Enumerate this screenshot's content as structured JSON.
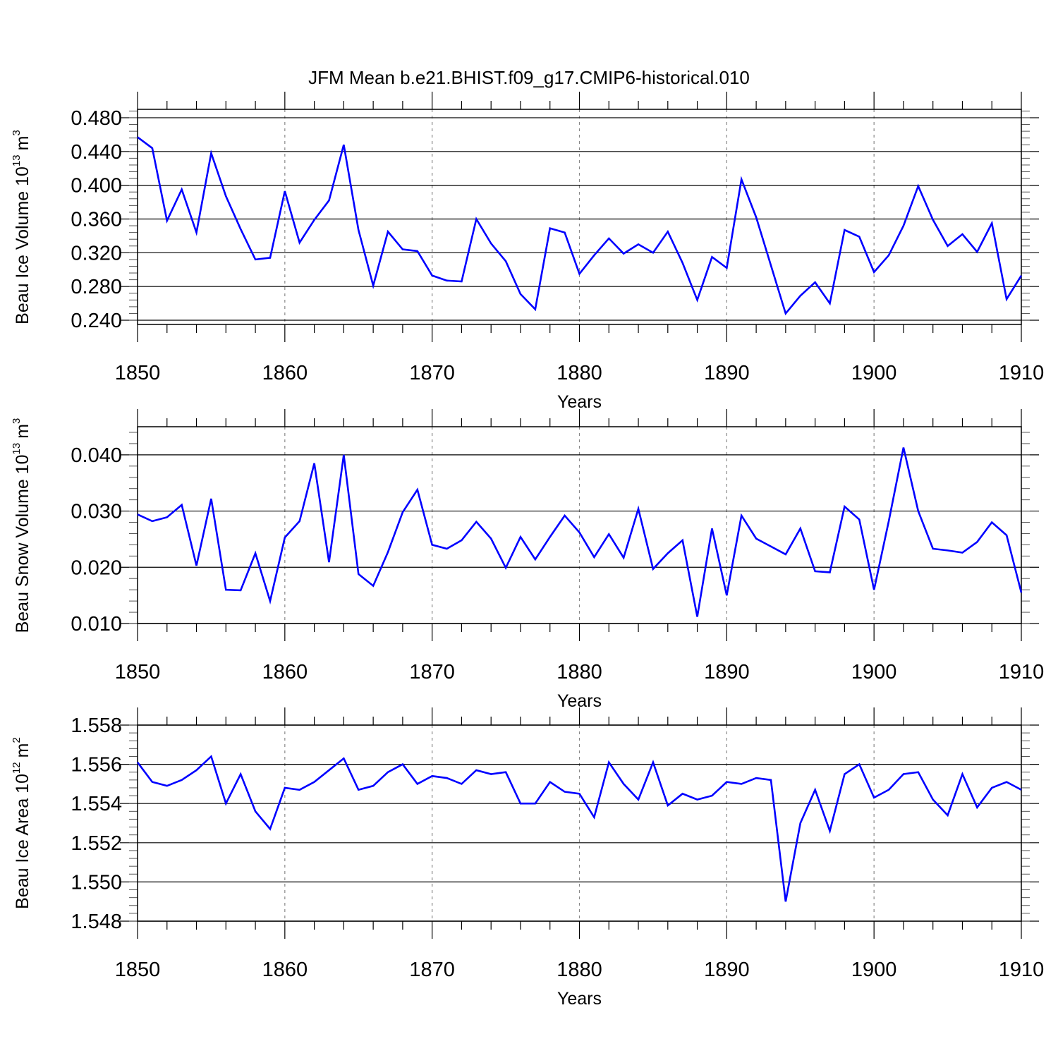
{
  "title": "JFM Mean b.e21.BHIST.f09_g17.CMIP6-historical.010",
  "chart_data": [
    {
      "type": "line",
      "title": "JFM Mean b.e21.BHIST.f09_g17.CMIP6-historical.010",
      "xlabel": "Years",
      "ylabel": "Beau Ice Volume 10",
      "ylabel_exponent": "13",
      "ylabel_unit": "m",
      "ylabel_unit_exponent": "3",
      "xlim": [
        1850,
        1910
      ],
      "ylim": [
        0.235,
        0.49
      ],
      "xticks": [
        1850,
        1860,
        1870,
        1880,
        1890,
        1900,
        1910
      ],
      "yticks": [
        "0.240",
        "0.280",
        "0.320",
        "0.360",
        "0.400",
        "0.440",
        "0.480"
      ],
      "color": "#0000ff",
      "x": [
        1850,
        1851,
        1852,
        1853,
        1854,
        1855,
        1856,
        1857,
        1858,
        1859,
        1860,
        1861,
        1862,
        1863,
        1864,
        1865,
        1866,
        1867,
        1868,
        1869,
        1870,
        1871,
        1872,
        1873,
        1874,
        1875,
        1876,
        1877,
        1878,
        1879,
        1880,
        1881,
        1882,
        1883,
        1884,
        1885,
        1886,
        1887,
        1888,
        1889,
        1890,
        1891,
        1892,
        1893,
        1894,
        1895,
        1896,
        1897,
        1898,
        1899,
        1900,
        1901,
        1902,
        1903,
        1904,
        1905,
        1906,
        1907,
        1908,
        1909,
        1910
      ],
      "values": [
        0.457,
        0.444,
        0.358,
        0.395,
        0.344,
        0.438,
        0.387,
        0.348,
        0.312,
        0.314,
        0.393,
        0.332,
        0.359,
        0.382,
        0.448,
        0.347,
        0.281,
        0.345,
        0.324,
        0.322,
        0.293,
        0.287,
        0.286,
        0.36,
        0.331,
        0.31,
        0.271,
        0.253,
        0.349,
        0.344,
        0.295,
        0.317,
        0.337,
        0.319,
        0.33,
        0.32,
        0.345,
        0.308,
        0.264,
        0.315,
        0.302,
        0.407,
        0.362,
        0.305,
        0.248,
        0.269,
        0.285,
        0.26,
        0.347,
        0.339,
        0.297,
        0.317,
        0.352,
        0.399,
        0.359,
        0.328,
        0.342,
        0.321,
        0.355,
        0.265,
        0.293
      ]
    },
    {
      "type": "line",
      "xlabel": "Years",
      "ylabel": "Beau Snow Volume 10",
      "ylabel_exponent": "13",
      "ylabel_unit": "m",
      "ylabel_unit_exponent": "3",
      "xlim": [
        1850,
        1910
      ],
      "ylim": [
        0.01,
        0.045
      ],
      "xticks": [
        1850,
        1860,
        1870,
        1880,
        1890,
        1900,
        1910
      ],
      "yticks": [
        "0.010",
        "0.020",
        "0.030",
        "0.040"
      ],
      "color": "#0000ff",
      "x": [
        1850,
        1851,
        1852,
        1853,
        1854,
        1855,
        1856,
        1857,
        1858,
        1859,
        1860,
        1861,
        1862,
        1863,
        1864,
        1865,
        1866,
        1867,
        1868,
        1869,
        1870,
        1871,
        1872,
        1873,
        1874,
        1875,
        1876,
        1877,
        1878,
        1879,
        1880,
        1881,
        1882,
        1883,
        1884,
        1885,
        1886,
        1887,
        1888,
        1889,
        1890,
        1891,
        1892,
        1893,
        1894,
        1895,
        1896,
        1897,
        1898,
        1899,
        1900,
        1901,
        1902,
        1903,
        1904,
        1905,
        1906,
        1907,
        1908,
        1909,
        1910
      ],
      "values": [
        0.0294,
        0.0282,
        0.0289,
        0.0311,
        0.0203,
        0.0322,
        0.016,
        0.0159,
        0.0225,
        0.014,
        0.0253,
        0.0282,
        0.0385,
        0.0209,
        0.04,
        0.0188,
        0.0167,
        0.0227,
        0.0298,
        0.0338,
        0.024,
        0.0233,
        0.0248,
        0.0281,
        0.0251,
        0.0199,
        0.0254,
        0.0214,
        0.0254,
        0.0292,
        0.0262,
        0.0218,
        0.0259,
        0.0217,
        0.0304,
        0.0197,
        0.0225,
        0.0248,
        0.0112,
        0.0269,
        0.015,
        0.0292,
        0.0251,
        0.0237,
        0.0223,
        0.0269,
        0.0193,
        0.0191,
        0.0308,
        0.0285,
        0.016,
        0.0282,
        0.0413,
        0.03,
        0.0233,
        0.023,
        0.0226,
        0.0245,
        0.028,
        0.0257,
        0.0155
      ]
    },
    {
      "type": "line",
      "xlabel": "Years",
      "ylabel": "Beau Ice Area 10",
      "ylabel_exponent": "12",
      "ylabel_unit": "m",
      "ylabel_unit_exponent": "2",
      "xlim": [
        1850,
        1910
      ],
      "ylim": [
        1.548,
        1.558
      ],
      "xticks": [
        1850,
        1860,
        1870,
        1880,
        1890,
        1900,
        1910
      ],
      "yticks": [
        "1.548",
        "1.550",
        "1.552",
        "1.554",
        "1.556",
        "1.558"
      ],
      "color": "#0000ff",
      "x": [
        1850,
        1851,
        1852,
        1853,
        1854,
        1855,
        1856,
        1857,
        1858,
        1859,
        1860,
        1861,
        1862,
        1863,
        1864,
        1865,
        1866,
        1867,
        1868,
        1869,
        1870,
        1871,
        1872,
        1873,
        1874,
        1875,
        1876,
        1877,
        1878,
        1879,
        1880,
        1881,
        1882,
        1883,
        1884,
        1885,
        1886,
        1887,
        1888,
        1889,
        1890,
        1891,
        1892,
        1893,
        1894,
        1895,
        1896,
        1897,
        1898,
        1899,
        1900,
        1901,
        1902,
        1903,
        1904,
        1905,
        1906,
        1907,
        1908,
        1909,
        1910
      ],
      "values": [
        1.5561,
        1.5551,
        1.5549,
        1.5552,
        1.5557,
        1.5564,
        1.554,
        1.5555,
        1.5536,
        1.5527,
        1.5548,
        1.5547,
        1.5551,
        1.5557,
        1.5563,
        1.5547,
        1.5549,
        1.5556,
        1.556,
        1.555,
        1.5554,
        1.5553,
        1.555,
        1.5557,
        1.5555,
        1.5556,
        1.554,
        1.554,
        1.5551,
        1.5546,
        1.5545,
        1.5533,
        1.5561,
        1.555,
        1.5542,
        1.5561,
        1.5539,
        1.5545,
        1.5542,
        1.5544,
        1.5551,
        1.555,
        1.5553,
        1.5552,
        1.549,
        1.553,
        1.5547,
        1.5526,
        1.5555,
        1.556,
        1.5543,
        1.5547,
        1.5555,
        1.5556,
        1.5542,
        1.5534,
        1.5555,
        1.5538,
        1.5548,
        1.5551,
        1.5547
      ]
    }
  ]
}
